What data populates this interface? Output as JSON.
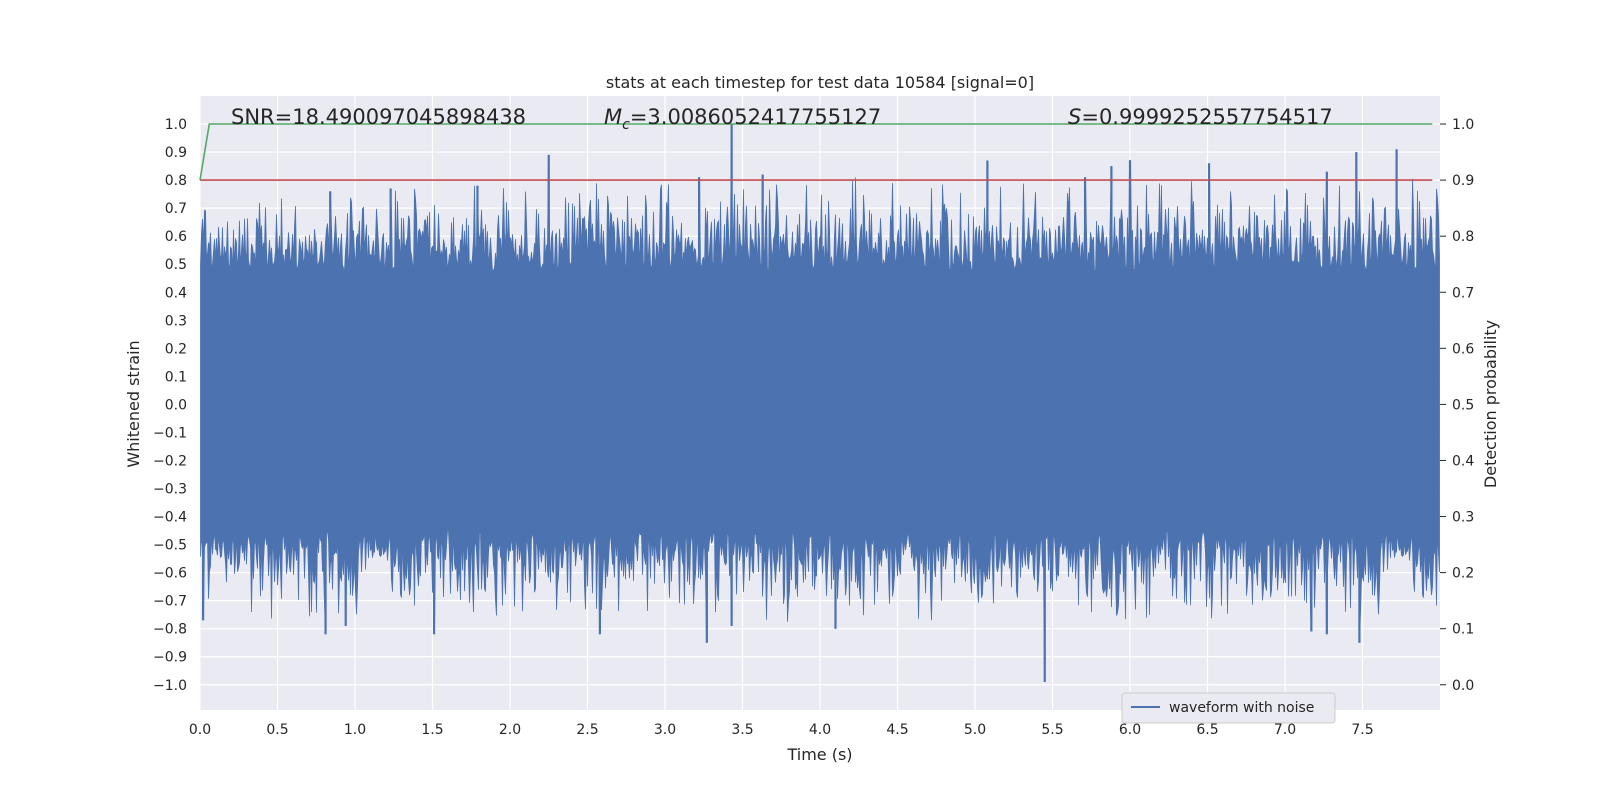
{
  "chart_data": {
    "type": "line",
    "title": "stats at each timestep for test data 10584 [signal=0]",
    "xlabel": "Time (s)",
    "ylabel": "Whitened strain",
    "ylabel_right": "Detection probability",
    "xlim": [
      0.0,
      8.0
    ],
    "ylim": [
      -1.09,
      1.1
    ],
    "ylim_right": [
      -0.045,
      1.05
    ],
    "x_ticks": [
      "0.0",
      "0.5",
      "1.0",
      "1.5",
      "2.0",
      "2.5",
      "3.0",
      "3.5",
      "4.0",
      "4.5",
      "5.0",
      "5.5",
      "6.0",
      "6.5",
      "7.0",
      "7.5"
    ],
    "y_ticks": [
      "1.0",
      "0.9",
      "0.8",
      "0.7",
      "0.6",
      "0.5",
      "0.4",
      "0.3",
      "0.2",
      "0.1",
      "0.0",
      "−0.1",
      "−0.2",
      "−0.3",
      "−0.4",
      "−0.5",
      "−0.6",
      "−0.7",
      "−0.8",
      "−0.9",
      "−1.0"
    ],
    "y_right_ticks": [
      "1.0",
      "0.9",
      "0.8",
      "0.7",
      "0.6",
      "0.5",
      "0.4",
      "0.3",
      "0.2",
      "0.1",
      "0.0"
    ],
    "series": [
      {
        "name": "waveform with noise",
        "color": "#4c72b0",
        "axis": "left",
        "sample_rate": 2048,
        "duration_s": 8.0,
        "band_upper": 0.47,
        "band_lower": -0.45,
        "noise_sigma": 0.17,
        "spikes": [
          {
            "x": 0.84,
            "y": 0.76
          },
          {
            "x": 1.23,
            "y": 0.77
          },
          {
            "x": 1.79,
            "y": 0.78
          },
          {
            "x": 2.25,
            "y": 0.89
          },
          {
            "x": 3.22,
            "y": 0.81
          },
          {
            "x": 3.43,
            "y": 1.0
          },
          {
            "x": 3.63,
            "y": 0.82
          },
          {
            "x": 5.08,
            "y": 0.87
          },
          {
            "x": 5.71,
            "y": 0.81
          },
          {
            "x": 5.88,
            "y": 0.85
          },
          {
            "x": 6.0,
            "y": 0.87
          },
          {
            "x": 6.51,
            "y": 0.86
          },
          {
            "x": 7.27,
            "y": 0.83
          },
          {
            "x": 7.46,
            "y": 0.9
          },
          {
            "x": 7.72,
            "y": 0.91
          },
          {
            "x": 0.02,
            "y": -0.77
          },
          {
            "x": 0.81,
            "y": -0.82
          },
          {
            "x": 0.94,
            "y": -0.79
          },
          {
            "x": 1.51,
            "y": -0.82
          },
          {
            "x": 2.58,
            "y": -0.82
          },
          {
            "x": 3.27,
            "y": -0.85
          },
          {
            "x": 3.43,
            "y": -0.79
          },
          {
            "x": 4.1,
            "y": -0.8
          },
          {
            "x": 5.45,
            "y": -0.99
          },
          {
            "x": 7.17,
            "y": -0.81
          },
          {
            "x": 7.27,
            "y": -0.82
          },
          {
            "x": 7.48,
            "y": -0.85
          }
        ]
      },
      {
        "name": "detection probability",
        "color": "#55a868",
        "axis": "right",
        "x": [
          0.0,
          0.06,
          7.95
        ],
        "y": [
          0.9,
          1.0,
          1.0
        ]
      },
      {
        "name": "threshold",
        "color": "#c44e52",
        "axis": "right",
        "x": [
          0.0,
          7.95
        ],
        "y": [
          0.9,
          0.9
        ]
      }
    ],
    "annotations": {
      "snr": "SNR=18.490097045898438",
      "mc_symbol": "M",
      "mc_sub": "c",
      "mc_value": "=3.0086052417755127",
      "s_symbol": "S",
      "s_value": "=0.9999252557754517"
    },
    "legend": {
      "label": "waveform with noise",
      "position": "lower-right"
    },
    "grid": true
  },
  "colors": {
    "axes_bg": "#eaeaf2",
    "grid": "#ffffff",
    "waveform": "#4c72b0",
    "probability": "#55a868",
    "threshold": "#c44e52",
    "text": "#262626"
  }
}
